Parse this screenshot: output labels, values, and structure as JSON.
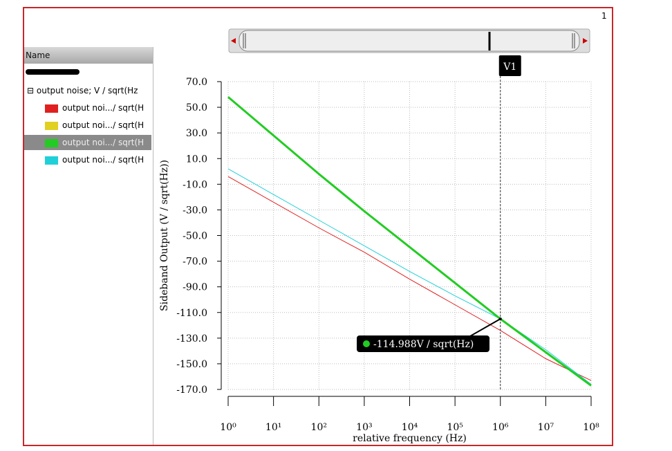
{
  "window": {
    "page_number": "1",
    "panel_header": "Name",
    "tree_root": "output noise; V / sqrt(Hz"
  },
  "chart_data": {
    "type": "line",
    "xlabel": "relative frequency (Hz)",
    "ylabel": "Sideband Output (V / sqrt(Hz))",
    "xscale": "log",
    "x": [
      1,
      10,
      100,
      1000,
      10000,
      100000,
      1000000,
      10000000,
      100000000
    ],
    "xlim": [
      1,
      100000000
    ],
    "xticks": [
      {
        "value": 1,
        "label": "10⁰"
      },
      {
        "value": 10,
        "label": "10¹"
      },
      {
        "value": 100,
        "label": "10²"
      },
      {
        "value": 1000,
        "label": "10³"
      },
      {
        "value": 10000,
        "label": "10⁴"
      },
      {
        "value": 100000,
        "label": "10⁵"
      },
      {
        "value": 1000000,
        "label": "10⁶"
      },
      {
        "value": 10000000,
        "label": "10⁷"
      },
      {
        "value": 100000000,
        "label": "10⁸"
      }
    ],
    "ylim": [
      -170,
      70
    ],
    "yticks": [
      {
        "value": 70,
        "label": "70.0"
      },
      {
        "value": 50,
        "label": "50.0"
      },
      {
        "value": 30,
        "label": "30.0"
      },
      {
        "value": 10,
        "label": "10.0"
      },
      {
        "value": -10,
        "label": "-10.0"
      },
      {
        "value": -30,
        "label": "-30.0"
      },
      {
        "value": -50,
        "label": "-50.0"
      },
      {
        "value": -70,
        "label": "-70.0"
      },
      {
        "value": -90,
        "label": "-90.0"
      },
      {
        "value": -110,
        "label": "-110.0"
      },
      {
        "value": -130,
        "label": "-130.0"
      },
      {
        "value": -150,
        "label": "-150.0"
      },
      {
        "value": -170,
        "label": "-170.0"
      }
    ],
    "grid": true,
    "selected_series": 2,
    "series": [
      {
        "name": "output noi.../ sqrt(H",
        "color": "#e02020",
        "width": 1,
        "values": [
          -4,
          -24,
          -44,
          -63,
          -84,
          -104,
          -124,
          -146,
          -163
        ]
      },
      {
        "name": "output noi.../ sqrt(H",
        "color": "#e0d020",
        "width": 1,
        "values": [
          58,
          28,
          -2,
          -31,
          -59,
          -87,
          -115,
          -141,
          -167
        ]
      },
      {
        "name": "output noi.../ sqrt(H",
        "color": "#22cc22",
        "width": 3,
        "values": [
          58,
          28,
          -2,
          -31,
          -59,
          -87,
          -115,
          -141,
          -167
        ]
      },
      {
        "name": "output noi.../ sqrt(H",
        "color": "#20d0d8",
        "width": 1,
        "values": [
          2,
          -18,
          -38,
          -58,
          -78,
          -97,
          -115,
          -139,
          -166
        ]
      }
    ],
    "marker": {
      "label": "V1",
      "x": 1000000
    },
    "annotation": {
      "text": "-114.988V / sqrt(Hz)",
      "x": 1000000,
      "y": -114.988
    }
  }
}
